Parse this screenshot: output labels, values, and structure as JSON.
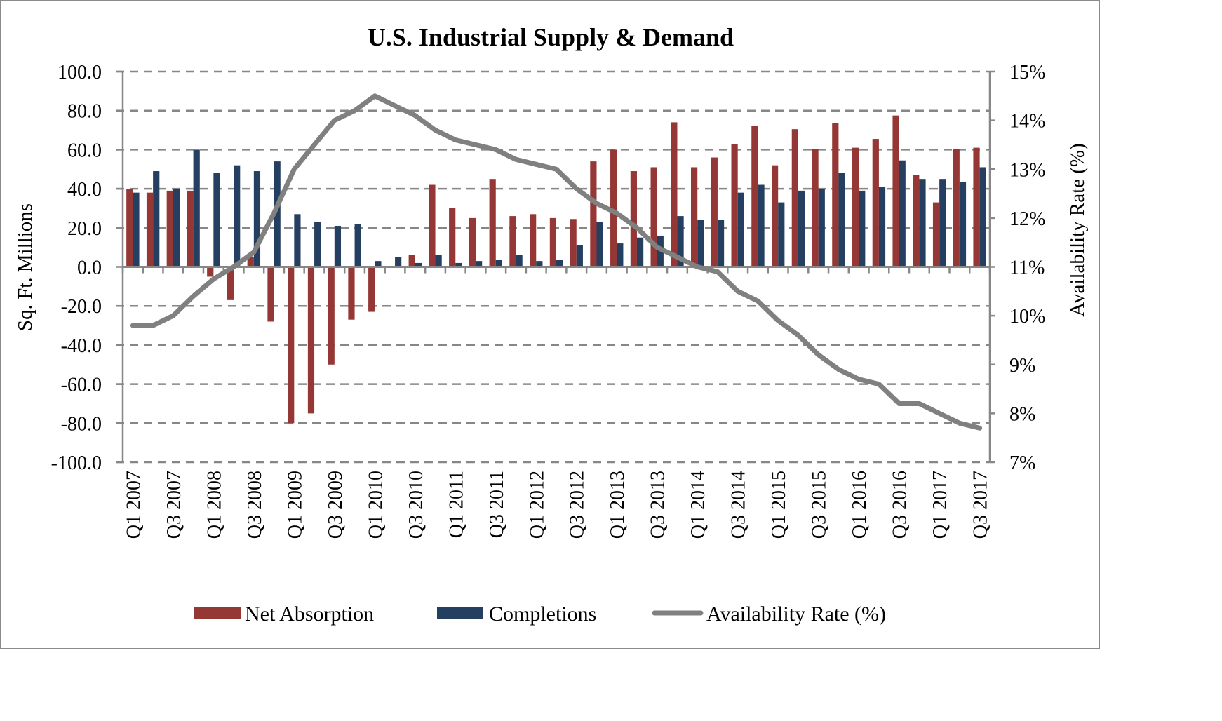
{
  "chart_data": {
    "type": "bar",
    "title": "U.S. Industrial Supply & Demand",
    "ylabel": "Sq. Ft. Millions",
    "ylabel_right": "Availability Rate (%)",
    "xlabel": "",
    "ylim": [
      -100,
      100
    ],
    "ylim_right": [
      7,
      15
    ],
    "y_ticks": [
      "100.0",
      "80.0",
      "60.0",
      "40.0",
      "20.0",
      "0.0",
      "-20.0",
      "-40.0",
      "-60.0",
      "-80.0",
      "-100.0"
    ],
    "y_right_ticks": [
      "15%",
      "14%",
      "13%",
      "12%",
      "11%",
      "10%",
      "9%",
      "8%",
      "7%"
    ],
    "grid": true,
    "legend_position": "bottom",
    "categories": [
      "Q1 2007",
      "Q2 2007",
      "Q3 2007",
      "Q4 2007",
      "Q1 2008",
      "Q2 2008",
      "Q3 2008",
      "Q4 2008",
      "Q1 2009",
      "Q2 2009",
      "Q3 2009",
      "Q4 2009",
      "Q1 2010",
      "Q2 2010",
      "Q3 2010",
      "Q4 2010",
      "Q1 2011",
      "Q2 2011",
      "Q3 2011",
      "Q4 2011",
      "Q1 2012",
      "Q2 2012",
      "Q3 2012",
      "Q4 2012",
      "Q1 2013",
      "Q2 2013",
      "Q3 2013",
      "Q4 2013",
      "Q1 2014",
      "Q2 2014",
      "Q3 2014",
      "Q4 2014",
      "Q1 2015",
      "Q2 2015",
      "Q3 2015",
      "Q4 2015",
      "Q1 2016",
      "Q2 2016",
      "Q3 2016",
      "Q4 2016",
      "Q1 2017",
      "Q2 2017",
      "Q3 2017"
    ],
    "x_tick_labels": [
      "Q1 2007",
      "Q3 2007",
      "Q1 2008",
      "Q3 2008",
      "Q1 2009",
      "Q3 2009",
      "Q1 2010",
      "Q3 2010",
      "Q1 2011",
      "Q3 2011",
      "Q1 2012",
      "Q3 2012",
      "Q1 2013",
      "Q3 2013",
      "Q1 2014",
      "Q3 2014",
      "Q1 2015",
      "Q3 2015",
      "Q1 2016",
      "Q3 2016",
      "Q1 2017",
      "Q3 2017"
    ],
    "series": [
      {
        "name": "Net Absorption",
        "type": "bar",
        "axis": "left",
        "color": "#953735",
        "values": [
          40,
          38,
          39,
          39,
          -5,
          -17,
          5,
          -28,
          -80,
          -75,
          -50,
          -27,
          -23,
          0,
          6,
          42,
          30,
          25,
          45,
          26,
          27,
          25,
          24.5,
          54,
          60,
          49,
          51,
          74,
          51,
          56,
          63,
          72,
          52,
          70.5,
          60.5,
          73.5,
          61,
          65.5,
          77.5,
          47,
          33,
          60.5,
          61
        ]
      },
      {
        "name": "Completions",
        "type": "bar",
        "axis": "left",
        "color": "#243f60",
        "values": [
          38,
          49,
          40,
          60,
          48,
          52,
          49,
          54,
          27,
          23,
          21,
          22,
          3,
          5,
          2,
          6,
          2,
          3,
          3.5,
          6,
          3,
          3.5,
          11,
          23,
          12,
          15,
          16,
          26,
          24,
          24,
          38,
          42,
          33,
          39,
          40,
          48,
          39,
          41,
          54.5,
          45,
          45,
          43.5,
          51
        ]
      },
      {
        "name": "Availability Rate (%)",
        "type": "line",
        "axis": "right",
        "color": "#808080",
        "values": [
          9.8,
          9.8,
          10.0,
          10.4,
          10.75,
          11.0,
          11.3,
          12.1,
          13.0,
          13.5,
          14.0,
          14.2,
          14.5,
          14.3,
          14.1,
          13.8,
          13.6,
          13.5,
          13.4,
          13.2,
          13.1,
          13.0,
          12.6,
          12.3,
          12.1,
          11.8,
          11.4,
          11.2,
          11.0,
          10.9,
          10.5,
          10.3,
          9.9,
          9.6,
          9.2,
          8.9,
          8.7,
          8.6,
          8.2,
          8.2,
          8.0,
          7.8,
          7.7
        ]
      }
    ]
  }
}
